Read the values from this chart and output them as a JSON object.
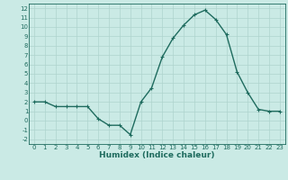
{
  "x": [
    0,
    1,
    2,
    3,
    4,
    5,
    6,
    7,
    8,
    9,
    10,
    11,
    12,
    13,
    14,
    15,
    16,
    17,
    18,
    19,
    20,
    21,
    22,
    23
  ],
  "y": [
    2.0,
    2.0,
    1.5,
    1.5,
    1.5,
    1.5,
    0.2,
    -0.5,
    -0.5,
    -1.5,
    2.0,
    3.5,
    6.8,
    8.8,
    10.2,
    11.3,
    11.8,
    10.8,
    9.2,
    5.2,
    3.0,
    1.2,
    1.0,
    1.0
  ],
  "line_color": "#1e6b5e",
  "marker": "+",
  "bg_color": "#caeae5",
  "grid_color": "#aed4ce",
  "tick_color": "#1e6b5e",
  "label_color": "#1e6b5e",
  "xlabel": "Humidex (Indice chaleur)",
  "ylim": [
    -2.5,
    12.5
  ],
  "xlim": [
    -0.5,
    23.5
  ],
  "yticks": [
    -2,
    -1,
    0,
    1,
    2,
    3,
    4,
    5,
    6,
    7,
    8,
    9,
    10,
    11,
    12
  ],
  "xticks": [
    0,
    1,
    2,
    3,
    4,
    5,
    6,
    7,
    8,
    9,
    10,
    11,
    12,
    13,
    14,
    15,
    16,
    17,
    18,
    19,
    20,
    21,
    22,
    23
  ],
  "marker_size": 3.5,
  "line_width": 1.0,
  "xlabel_fontsize": 6.5,
  "tick_fontsize": 5.0
}
